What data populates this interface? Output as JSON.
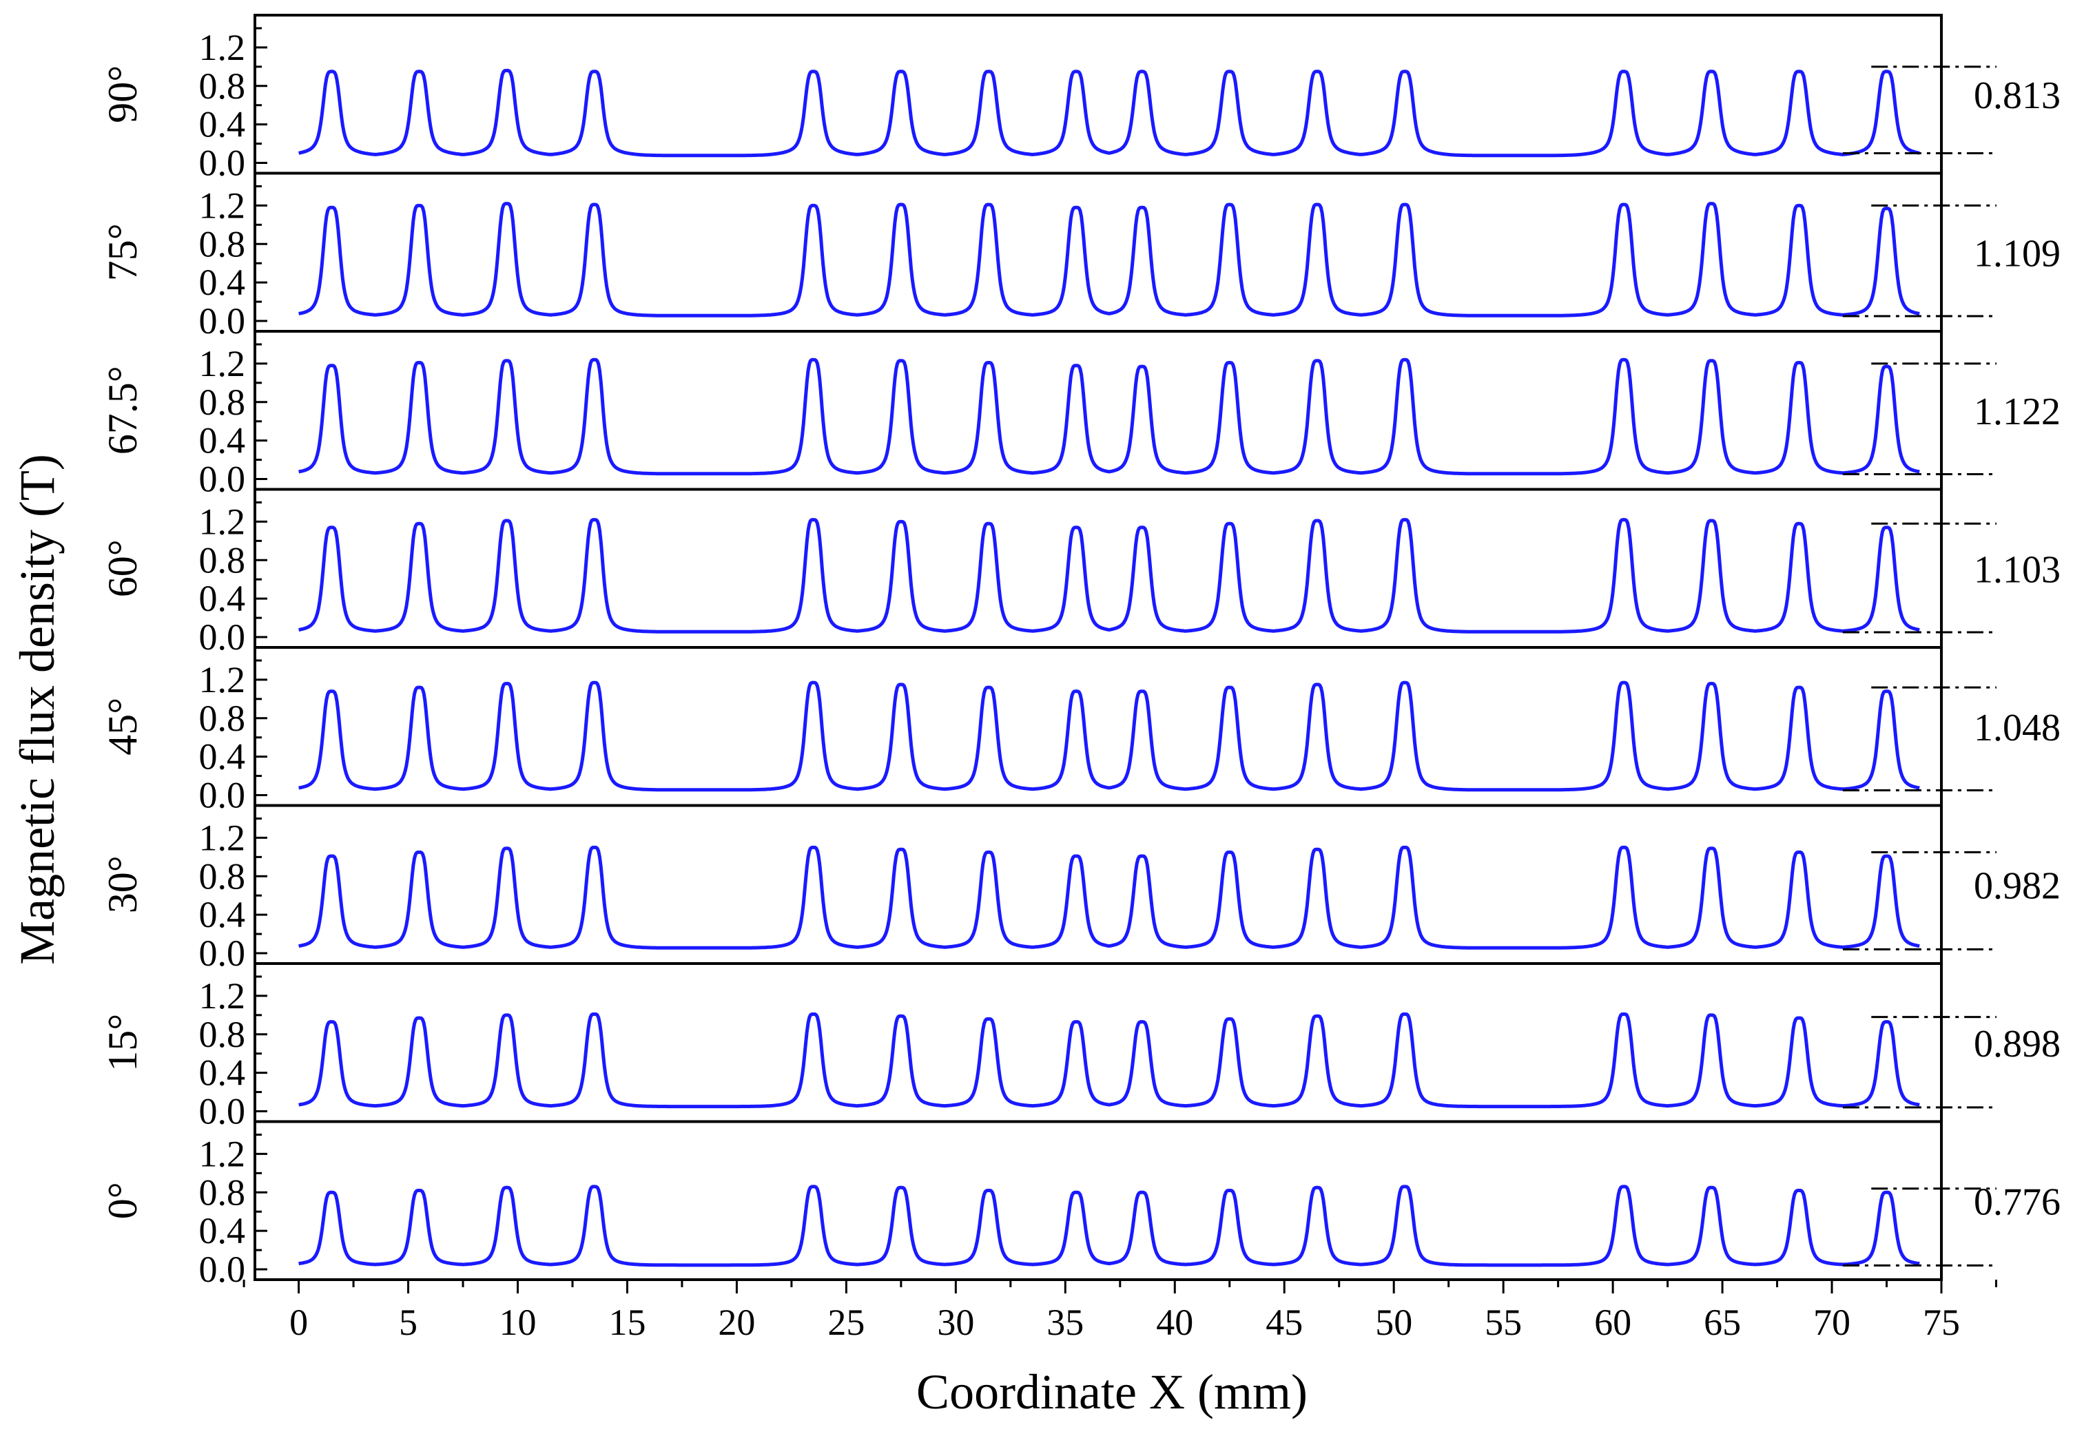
{
  "chart_data": {
    "type": "line",
    "xlabel": "Coordinate X (mm)",
    "ylabel": "Magnetic flux density (T)",
    "xlim": [
      -2,
      75
    ],
    "ylim": [
      -0.05,
      1.45
    ],
    "x_ticks": [
      "0",
      "5",
      "10",
      "15",
      "20",
      "25",
      "30",
      "35",
      "40",
      "45",
      "50",
      "55",
      "60",
      "65",
      "70",
      "75"
    ],
    "y_ticks": [
      "0.0",
      "0.4",
      "0.8",
      "1.2"
    ],
    "grid": false,
    "line_color": "#1a1aff",
    "peak_positions": [
      1.5,
      5.5,
      9.5,
      13.5,
      23.5,
      27.5,
      31.5,
      35.5,
      38.5,
      42.5,
      46.5,
      50.5,
      60.5,
      64.5,
      68.5,
      72.5
    ],
    "panels": [
      {
        "angle": "90°",
        "amplitude_label": "0.813",
        "baseline": 0.14,
        "peaks": [
          0.95,
          0.95,
          0.96,
          0.95,
          0.95,
          0.95,
          0.95,
          0.95,
          0.95,
          0.95,
          0.95,
          0.95,
          0.95,
          0.95,
          0.95,
          0.95
        ],
        "ref_top": 1.0,
        "ref_bottom": 0.1
      },
      {
        "angle": "75°",
        "amplitude_label": "1.109",
        "baseline": 0.1,
        "peaks": [
          1.18,
          1.2,
          1.22,
          1.21,
          1.2,
          1.21,
          1.21,
          1.18,
          1.18,
          1.21,
          1.21,
          1.21,
          1.21,
          1.22,
          1.2,
          1.17
        ],
        "ref_top": 1.2,
        "ref_bottom": 0.05
      },
      {
        "angle": "67.5°",
        "amplitude_label": "1.122",
        "baseline": 0.1,
        "peaks": [
          1.18,
          1.21,
          1.23,
          1.24,
          1.24,
          1.23,
          1.21,
          1.18,
          1.17,
          1.21,
          1.23,
          1.24,
          1.24,
          1.23,
          1.21,
          1.17
        ],
        "ref_top": 1.2,
        "ref_bottom": 0.05
      },
      {
        "angle": "60°",
        "amplitude_label": "1.103",
        "baseline": 0.1,
        "peaks": [
          1.14,
          1.18,
          1.21,
          1.22,
          1.22,
          1.2,
          1.18,
          1.14,
          1.14,
          1.18,
          1.21,
          1.22,
          1.22,
          1.21,
          1.18,
          1.14
        ],
        "ref_top": 1.18,
        "ref_bottom": 0.05
      },
      {
        "angle": "45°",
        "amplitude_label": "1.048",
        "baseline": 0.1,
        "peaks": [
          1.08,
          1.12,
          1.16,
          1.17,
          1.17,
          1.15,
          1.12,
          1.08,
          1.08,
          1.12,
          1.15,
          1.17,
          1.17,
          1.16,
          1.12,
          1.08
        ],
        "ref_top": 1.12,
        "ref_bottom": 0.05
      },
      {
        "angle": "30°",
        "amplitude_label": "0.982",
        "baseline": 0.1,
        "peaks": [
          1.01,
          1.05,
          1.09,
          1.1,
          1.1,
          1.08,
          1.05,
          1.01,
          1.01,
          1.05,
          1.08,
          1.1,
          1.1,
          1.09,
          1.05,
          1.01
        ],
        "ref_top": 1.05,
        "ref_bottom": 0.04
      },
      {
        "angle": "15°",
        "amplitude_label": "0.898",
        "baseline": 0.09,
        "peaks": [
          0.93,
          0.97,
          1.0,
          1.01,
          1.01,
          0.99,
          0.96,
          0.93,
          0.93,
          0.96,
          0.99,
          1.01,
          1.01,
          1.0,
          0.97,
          0.93
        ],
        "ref_top": 0.98,
        "ref_bottom": 0.04
      },
      {
        "angle": "0°",
        "amplitude_label": "0.776",
        "baseline": 0.08,
        "peaks": [
          0.8,
          0.82,
          0.85,
          0.86,
          0.86,
          0.85,
          0.82,
          0.8,
          0.8,
          0.82,
          0.85,
          0.86,
          0.86,
          0.85,
          0.82,
          0.8
        ],
        "ref_top": 0.84,
        "ref_bottom": 0.04
      }
    ]
  }
}
